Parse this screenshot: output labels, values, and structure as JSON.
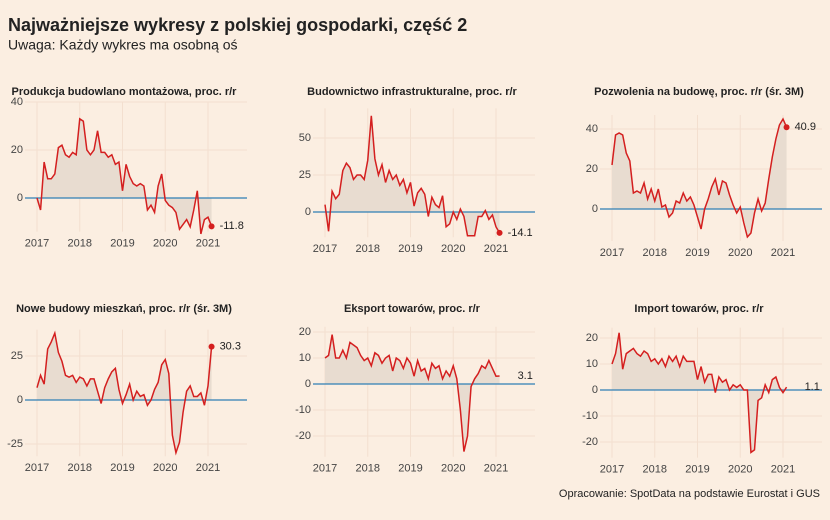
{
  "title": "Najważniejsze wykresy z polskiej gospodarki, część 2",
  "subtitle": "Uwaga: Każdy wykres ma osobną oś",
  "source": "Opracowanie: SpotData na podstawie Eurostat i GUS",
  "chart_data": [
    {
      "type": "line",
      "title": "Produkcja budowlano montażowa, proc. r/r",
      "color": "#d41f1f",
      "end_marker": true,
      "categories": [
        "2017",
        null,
        null,
        null,
        null,
        null,
        null,
        null,
        null,
        null,
        null,
        null,
        "2018",
        null,
        null,
        null,
        null,
        null,
        null,
        null,
        null,
        null,
        null,
        null,
        "2019",
        null,
        null,
        null,
        null,
        null,
        null,
        null,
        null,
        null,
        null,
        null,
        "2020",
        null,
        null,
        null,
        null,
        null,
        null,
        null,
        null,
        null,
        null,
        null,
        "2021",
        null
      ],
      "values": [
        0,
        -5,
        15,
        8,
        8,
        10,
        21,
        22,
        18,
        17,
        19,
        18,
        33,
        32,
        20,
        18,
        20,
        28,
        19,
        19,
        17,
        18,
        14,
        15,
        3,
        14,
        9,
        6,
        5,
        6,
        5,
        -5,
        -3,
        -6,
        5,
        10,
        -1,
        -3,
        -4,
        -6,
        -13,
        -11,
        -9,
        -12,
        -5,
        3,
        -15,
        -9,
        -8,
        -11.8
      ],
      "ylim": [
        -14,
        40
      ],
      "yticks": [
        0,
        20,
        40
      ]
    },
    {
      "type": "line",
      "title": "Budownictwo infrastrukturalne, proc. r/r",
      "color": "#d41f1f",
      "end_marker": true,
      "categories": [
        "2017",
        null,
        null,
        null,
        null,
        null,
        null,
        null,
        null,
        null,
        null,
        null,
        "2018",
        null,
        null,
        null,
        null,
        null,
        null,
        null,
        null,
        null,
        null,
        null,
        "2019",
        null,
        null,
        null,
        null,
        null,
        null,
        null,
        null,
        null,
        null,
        null,
        "2020",
        null,
        null,
        null,
        null,
        null,
        null,
        null,
        null,
        null,
        null,
        null,
        "2021",
        null
      ],
      "values": [
        5,
        -13,
        14,
        9,
        12,
        28,
        33,
        30,
        22,
        25,
        25,
        22,
        35,
        65,
        36,
        25,
        32,
        20,
        28,
        22,
        25,
        18,
        22,
        13,
        20,
        4,
        13,
        16,
        12,
        -3,
        10,
        5,
        3,
        11,
        -10,
        -8,
        0,
        -5,
        2,
        -3,
        -16,
        -16,
        -16,
        -3,
        -3,
        1,
        -5,
        -2,
        -10,
        -14.1
      ],
      "ylim": [
        -17,
        70
      ],
      "yticks": [
        0,
        25,
        50
      ]
    },
    {
      "type": "line",
      "title": "Pozwolenia na budowę, proc. r/r (śr. 3M)",
      "color": "#d41f1f",
      "end_marker": true,
      "categories": [
        "2017",
        null,
        null,
        null,
        null,
        null,
        null,
        null,
        null,
        null,
        null,
        null,
        "2018",
        null,
        null,
        null,
        null,
        null,
        null,
        null,
        null,
        null,
        null,
        null,
        "2019",
        null,
        null,
        null,
        null,
        null,
        null,
        null,
        null,
        null,
        null,
        null,
        "2020",
        null,
        null,
        null,
        null,
        null,
        null,
        null,
        null,
        null,
        null,
        null,
        "2021",
        null
      ],
      "values": [
        22,
        37,
        38,
        37,
        28,
        24,
        8,
        9,
        8,
        13,
        5,
        10,
        4,
        10,
        1,
        2,
        -4,
        -2,
        4,
        3,
        8,
        4,
        6,
        2,
        -4,
        -10,
        0,
        5,
        11,
        15,
        7,
        14,
        13,
        7,
        2,
        -2,
        1,
        -7,
        -14,
        -12,
        -2,
        5,
        -1,
        3,
        15,
        26,
        35,
        42,
        45,
        40.9
      ],
      "ylim": [
        -16,
        47
      ],
      "yticks": [
        0,
        20,
        40
      ]
    },
    {
      "type": "line",
      "title": "Nowe budowy mieszkań, proc. r/r (śr. 3M)",
      "color": "#d41f1f",
      "end_marker": true,
      "categories": [
        "2017",
        null,
        null,
        null,
        null,
        null,
        null,
        null,
        null,
        null,
        null,
        null,
        "2018",
        null,
        null,
        null,
        null,
        null,
        null,
        null,
        null,
        null,
        null,
        null,
        "2019",
        null,
        null,
        null,
        null,
        null,
        null,
        null,
        null,
        null,
        null,
        null,
        "2020",
        null,
        null,
        null,
        null,
        null,
        null,
        null,
        null,
        null,
        null,
        null,
        "2021",
        null
      ],
      "values": [
        7,
        14,
        9,
        29,
        33,
        38,
        27,
        22,
        14,
        13,
        14,
        10,
        13,
        12,
        8,
        12,
        12,
        5,
        -2,
        7,
        12,
        16,
        18,
        6,
        -2,
        3,
        9,
        0,
        5,
        2,
        3,
        -3,
        0,
        6,
        10,
        20,
        23,
        15,
        -20,
        -30,
        -24,
        -7,
        5,
        8,
        2,
        2,
        4,
        -3,
        8,
        30.3
      ],
      "ylim": [
        -32,
        40
      ],
      "yticks": [
        -25,
        0,
        25
      ]
    },
    {
      "type": "line",
      "title": "Eksport towarów, proc. r/r",
      "color": "#d41f1f",
      "end_marker": false,
      "categories": [
        "2017",
        null,
        null,
        null,
        null,
        null,
        null,
        null,
        null,
        null,
        null,
        null,
        "2018",
        null,
        null,
        null,
        null,
        null,
        null,
        null,
        null,
        null,
        null,
        null,
        "2019",
        null,
        null,
        null,
        null,
        null,
        null,
        null,
        null,
        null,
        null,
        null,
        "2020",
        null,
        null,
        null,
        null,
        null,
        null,
        null,
        null,
        null,
        null,
        null,
        "2021",
        null
      ],
      "values": [
        10,
        11,
        19,
        10,
        10,
        13,
        10,
        16,
        15,
        14,
        11,
        9,
        10,
        7,
        12,
        11,
        8,
        10,
        11,
        5,
        10,
        9,
        6,
        10,
        8,
        3,
        9,
        5,
        6,
        2,
        8,
        6,
        7,
        2,
        5,
        3,
        7,
        2,
        -10,
        -26,
        -20,
        -1,
        2,
        4,
        7,
        6,
        9,
        6,
        3,
        3.1
      ],
      "ylim": [
        -28,
        22
      ],
      "yticks": [
        -20,
        -10,
        0,
        10,
        20
      ]
    },
    {
      "type": "line",
      "title": "Import towarów, proc. r/r",
      "color": "#d41f1f",
      "end_marker": false,
      "categories": [
        "2017",
        null,
        null,
        null,
        null,
        null,
        null,
        null,
        null,
        null,
        null,
        null,
        "2018",
        null,
        null,
        null,
        null,
        null,
        null,
        null,
        null,
        null,
        null,
        null,
        "2019",
        null,
        null,
        null,
        null,
        null,
        null,
        null,
        null,
        null,
        null,
        null,
        "2020",
        null,
        null,
        null,
        null,
        null,
        null,
        null,
        null,
        null,
        null,
        null,
        "2021",
        null
      ],
      "values": [
        10,
        14,
        22,
        8,
        14,
        15,
        16,
        14,
        13,
        15,
        14,
        11,
        12,
        10,
        12,
        9,
        13,
        11,
        13,
        9,
        13,
        11,
        11,
        11,
        4,
        9,
        3,
        6,
        6,
        -1,
        5,
        3,
        4,
        0,
        2,
        1,
        2,
        0,
        0,
        -24,
        -23,
        -4,
        -3,
        2,
        -1,
        4,
        5,
        1,
        -1,
        1.1
      ],
      "ylim": [
        -26,
        24
      ],
      "yticks": [
        -20,
        -10,
        0,
        10,
        20
      ]
    }
  ]
}
